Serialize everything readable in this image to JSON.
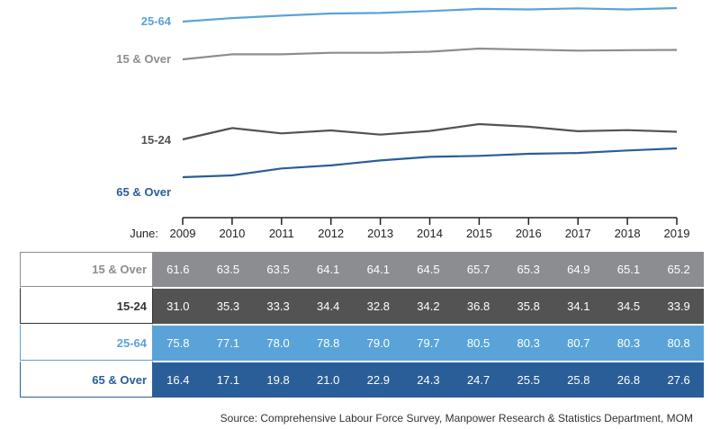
{
  "chart_data": {
    "type": "line",
    "axis_prefix": "June:",
    "x": [
      "2009",
      "2010",
      "2011",
      "2012",
      "2013",
      "2014",
      "2015",
      "2016",
      "2017",
      "2018",
      "2019"
    ],
    "series": [
      {
        "name": "25-64",
        "color": "#5aa3d8",
        "values": [
          75.8,
          77.1,
          78.0,
          78.8,
          79.0,
          79.7,
          80.5,
          80.3,
          80.7,
          80.3,
          80.8
        ]
      },
      {
        "name": "15 & Over",
        "color": "#8c8d91",
        "values": [
          61.6,
          63.5,
          63.5,
          64.1,
          64.1,
          64.5,
          65.7,
          65.3,
          64.9,
          65.1,
          65.2
        ]
      },
      {
        "name": "15-24",
        "color": "#535353",
        "values": [
          31.0,
          35.3,
          33.3,
          34.4,
          32.8,
          34.2,
          36.8,
          35.8,
          34.1,
          34.5,
          33.9
        ]
      },
      {
        "name": "65 & Over",
        "color": "#2a5e98",
        "values": [
          16.4,
          17.1,
          19.8,
          21.0,
          22.9,
          24.3,
          24.7,
          25.5,
          25.8,
          26.8,
          27.6
        ]
      }
    ],
    "table_rows": [
      {
        "label": "15 & Over",
        "cls": "row-15o",
        "values": [
          "61.6",
          "63.5",
          "63.5",
          "64.1",
          "64.1",
          "64.5",
          "65.7",
          "65.3",
          "64.9",
          "65.1",
          "65.2"
        ]
      },
      {
        "label": "15-24",
        "cls": "row-1524",
        "values": [
          "31.0",
          "35.3",
          "33.3",
          "34.4",
          "32.8",
          "34.2",
          "36.8",
          "35.8",
          "34.1",
          "34.5",
          "33.9"
        ]
      },
      {
        "label": "25-64",
        "cls": "row-2564",
        "values": [
          "75.8",
          "77.1",
          "78.0",
          "78.8",
          "79.0",
          "79.7",
          "80.5",
          "80.3",
          "80.7",
          "80.3",
          "80.8"
        ]
      },
      {
        "label": "65 & Over",
        "cls": "row-65o",
        "values": [
          "16.4",
          "17.1",
          "19.8",
          "21.0",
          "22.9",
          "24.3",
          "24.7",
          "25.5",
          "25.8",
          "26.8",
          "27.6"
        ]
      }
    ],
    "source": "Source: Comprehensive Labour Force Survey, Manpower Research & Statistics Department, MOM"
  }
}
